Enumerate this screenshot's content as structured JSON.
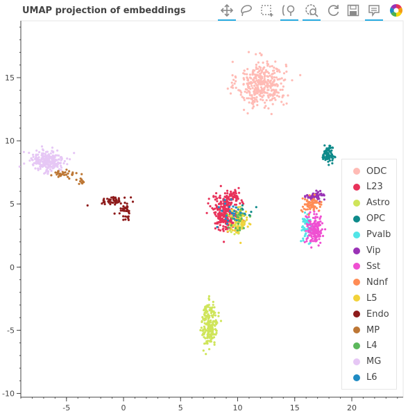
{
  "chart_data": {
    "type": "scatter",
    "title": "UMAP projection of embeddings",
    "xlabel": "",
    "ylabel": "",
    "xlim": [
      -9,
      24.5
    ],
    "ylim": [
      -10.3,
      19.5
    ],
    "x_ticks": [
      -5,
      0,
      5,
      10,
      15,
      20
    ],
    "y_ticks": [
      -10,
      -5,
      0,
      5,
      10,
      15
    ],
    "grid": false,
    "legend_position": "right",
    "series": [
      {
        "name": "ODC",
        "color": "#ffbbb5",
        "clusters": [
          {
            "cx": 12.1,
            "cy": 14.5,
            "sx": 1.05,
            "sy": 0.9,
            "n": 380
          }
        ]
      },
      {
        "name": "L23",
        "color": "#e8325a",
        "clusters": [
          {
            "cx": 8.9,
            "cy": 4.3,
            "sx": 0.55,
            "sy": 0.7,
            "n": 240
          },
          {
            "cx": 9.6,
            "cy": 5.5,
            "sx": 0.35,
            "sy": 0.3,
            "n": 50
          }
        ]
      },
      {
        "name": "Astro",
        "color": "#cfe55a",
        "clusters": [
          {
            "cx": 7.55,
            "cy": -4.5,
            "sx": 0.35,
            "sy": 0.85,
            "n": 200
          },
          {
            "cx": 10.1,
            "cy": 3.5,
            "sx": 0.35,
            "sy": 0.45,
            "n": 55
          }
        ]
      },
      {
        "name": "OPC",
        "color": "#0e8a8a",
        "clusters": [
          {
            "cx": 17.9,
            "cy": 8.9,
            "sx": 0.22,
            "sy": 0.3,
            "n": 90
          },
          {
            "cx": 10.6,
            "cy": 4.3,
            "sx": 0.4,
            "sy": 0.5,
            "n": 10
          }
        ]
      },
      {
        "name": "Pvalb",
        "color": "#52e5e7",
        "clusters": [
          {
            "cx": 16.1,
            "cy": 3.2,
            "sx": 0.25,
            "sy": 0.5,
            "n": 55
          }
        ]
      },
      {
        "name": "Vip",
        "color": "#9a32b6",
        "clusters": [
          {
            "cx": 16.8,
            "cy": 5.6,
            "sx": 0.4,
            "sy": 0.2,
            "n": 55
          }
        ]
      },
      {
        "name": "Sst",
        "color": "#ef50d2",
        "clusters": [
          {
            "cx": 16.75,
            "cy": 3.0,
            "sx": 0.35,
            "sy": 0.6,
            "n": 160
          }
        ]
      },
      {
        "name": "Ndnf",
        "color": "#ff8c55",
        "clusters": [
          {
            "cx": 16.45,
            "cy": 4.9,
            "sx": 0.45,
            "sy": 0.25,
            "n": 70
          }
        ]
      },
      {
        "name": "L5",
        "color": "#f2d23a",
        "clusters": [
          {
            "cx": 10.0,
            "cy": 3.6,
            "sx": 0.45,
            "sy": 0.55,
            "n": 70
          }
        ]
      },
      {
        "name": "Endo",
        "color": "#8e1b1b",
        "clusters": [
          {
            "cx": -0.8,
            "cy": 5.3,
            "sx": 0.6,
            "sy": 0.15,
            "n": 45
          },
          {
            "cx": 0.25,
            "cy": 4.5,
            "sx": 0.25,
            "sy": 0.3,
            "n": 35
          }
        ]
      },
      {
        "name": "MP",
        "color": "#bd7735",
        "clusters": [
          {
            "cx": -5.5,
            "cy": 7.3,
            "sx": 0.6,
            "sy": 0.15,
            "n": 30
          },
          {
            "cx": -3.7,
            "cy": 6.8,
            "sx": 0.2,
            "sy": 0.2,
            "n": 12
          }
        ]
      },
      {
        "name": "L4",
        "color": "#5cb85c",
        "clusters": [
          {
            "cx": 10.1,
            "cy": 3.8,
            "sx": 0.4,
            "sy": 0.5,
            "n": 30
          }
        ]
      },
      {
        "name": "MG",
        "color": "#e6c7f5",
        "clusters": [
          {
            "cx": -6.7,
            "cy": 8.4,
            "sx": 0.75,
            "sy": 0.45,
            "n": 230
          }
        ]
      },
      {
        "name": "L6",
        "color": "#1f8bc3",
        "clusters": [
          {
            "cx": 9.4,
            "cy": 4.3,
            "sx": 0.6,
            "sy": 0.7,
            "n": 25
          }
        ]
      }
    ]
  },
  "toolbar": [
    {
      "name": "pan-tool-icon",
      "active": true
    },
    {
      "name": "lasso-select-icon",
      "active": false
    },
    {
      "name": "box-select-icon",
      "active": false
    },
    {
      "name": "box-zoom-icon",
      "active": true
    },
    {
      "name": "wheel-zoom-icon",
      "active": true
    },
    {
      "name": "reset-icon",
      "active": false
    },
    {
      "name": "save-icon",
      "active": false
    },
    {
      "name": "hover-tooltip-icon",
      "active": true
    },
    {
      "name": "bokeh-logo-icon",
      "active": false
    }
  ]
}
